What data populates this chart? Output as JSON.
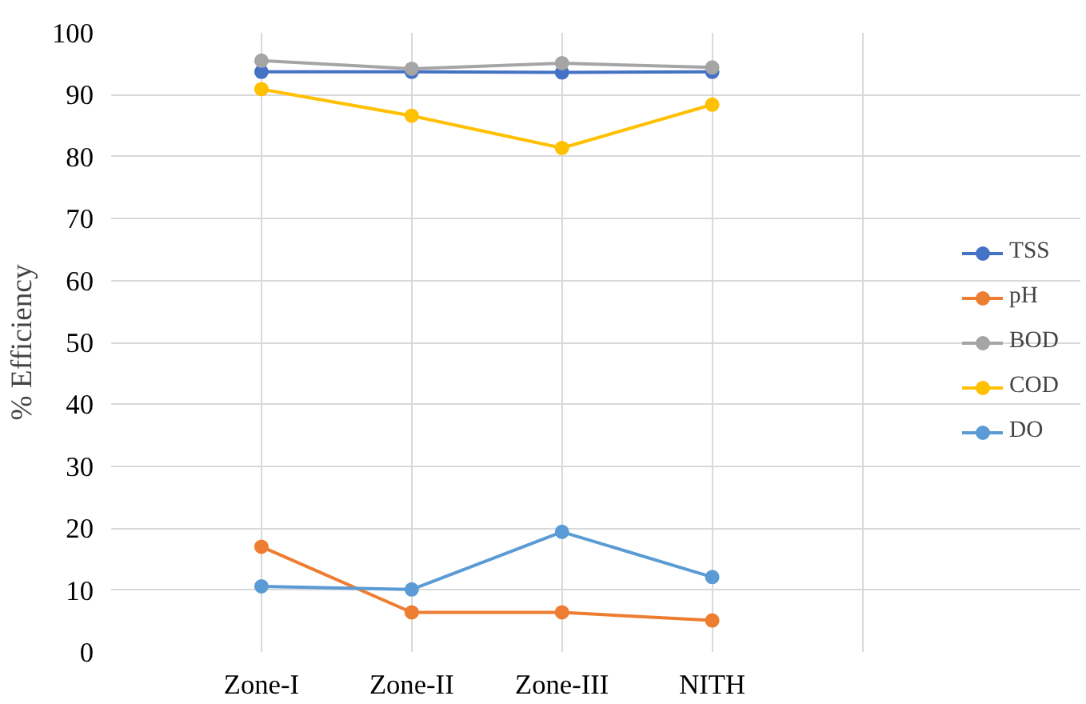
{
  "chart_data": {
    "type": "line",
    "ylabel": "% Efficiency",
    "categories": [
      "Zone-I",
      "Zone-II",
      "Zone-III",
      "NITH"
    ],
    "ylim": [
      0,
      100
    ],
    "yticks": [
      0,
      10,
      20,
      30,
      40,
      50,
      60,
      70,
      80,
      90,
      100
    ],
    "grid": true,
    "legend": "right",
    "marker": "circle",
    "line_style": "solid",
    "series": [
      {
        "name": "TSS",
        "color": "#4472c4",
        "values": [
          93.7,
          93.7,
          93.6,
          93.7
        ]
      },
      {
        "name": "pH",
        "color": "#ed7d31",
        "values": [
          17.0,
          6.4,
          6.4,
          5.1
        ]
      },
      {
        "name": "BOD",
        "color": "#a5a5a5",
        "values": [
          95.5,
          94.2,
          95.1,
          94.4
        ]
      },
      {
        "name": "COD",
        "color": "#ffc000",
        "values": [
          90.9,
          86.6,
          81.4,
          88.4
        ]
      },
      {
        "name": "DO",
        "color": "#5b9bd5",
        "values": [
          10.6,
          10.1,
          19.4,
          12.1
        ]
      }
    ]
  }
}
